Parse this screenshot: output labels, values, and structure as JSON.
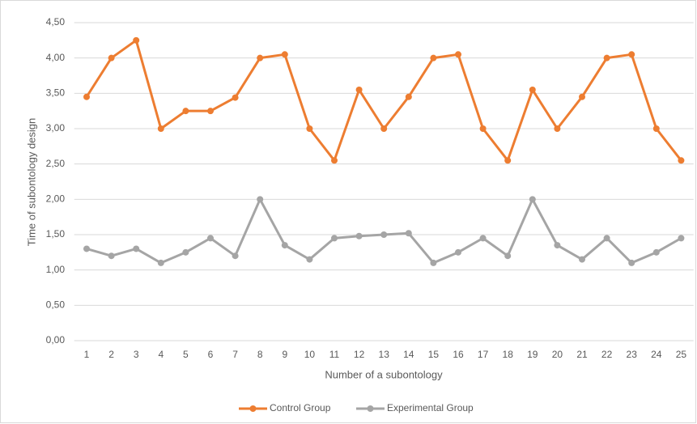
{
  "chart_data": {
    "type": "line",
    "y_label": "Time of subontology design",
    "x_label": "Number of a subontology",
    "categories": [
      "1",
      "2",
      "3",
      "4",
      "5",
      "6",
      "7",
      "8",
      "9",
      "10",
      "11",
      "12",
      "13",
      "14",
      "15",
      "16",
      "17",
      "18",
      "19",
      "20",
      "21",
      "22",
      "23",
      "24",
      "25"
    ],
    "series": [
      {
        "name": "Control Group",
        "color": "#ed7d31",
        "values": [
          3.45,
          4.0,
          4.25,
          3.0,
          3.25,
          3.25,
          3.44,
          4.0,
          4.05,
          3.0,
          2.55,
          3.55,
          3.0,
          3.45,
          4.0,
          4.05,
          3.0,
          2.55,
          3.55,
          3.0,
          3.45,
          4.0,
          4.05,
          3.0,
          2.55
        ]
      },
      {
        "name": "Experimental Group",
        "color": "#a5a5a5",
        "values": [
          1.3,
          1.2,
          1.3,
          1.1,
          1.25,
          1.45,
          1.2,
          2.0,
          1.35,
          1.15,
          1.45,
          1.48,
          1.5,
          1.52,
          1.1,
          1.25,
          1.45,
          1.2,
          2.0,
          1.35,
          1.15,
          1.45,
          1.1,
          1.25,
          1.45
        ]
      }
    ],
    "ylim": [
      0,
      4.5
    ],
    "yticks": [
      {
        "value": 0,
        "label": "0,00"
      },
      {
        "value": 0.5,
        "label": "0,50"
      },
      {
        "value": 1,
        "label": "1,00"
      },
      {
        "value": 1.5,
        "label": "1,50"
      },
      {
        "value": 2,
        "label": "2,00"
      },
      {
        "value": 2.5,
        "label": "2,50"
      },
      {
        "value": 3,
        "label": "3,00"
      },
      {
        "value": 3.5,
        "label": "3,50"
      },
      {
        "value": 4,
        "label": "4,00"
      },
      {
        "value": 4.5,
        "label": "4,50"
      }
    ],
    "grid": true,
    "legend": "bottom"
  }
}
